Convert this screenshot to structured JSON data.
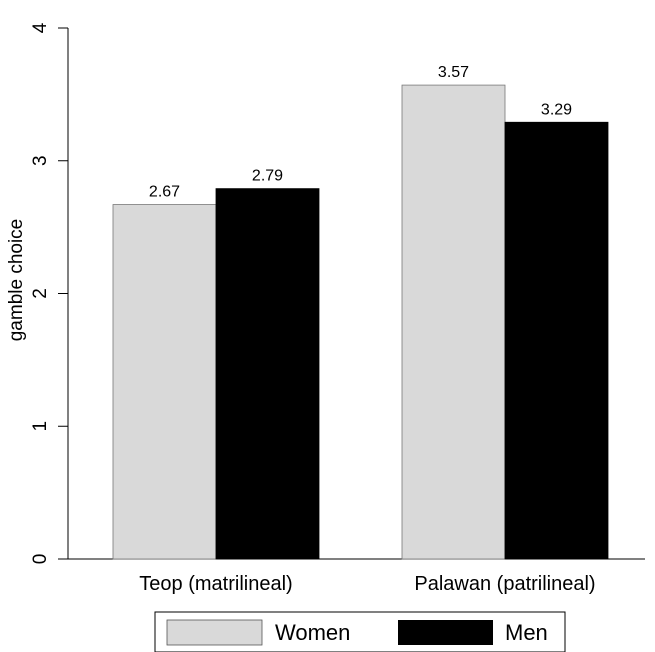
{
  "chart_data": {
    "type": "bar",
    "title": "",
    "xlabel": "",
    "ylabel": "gamble choice",
    "ylim": [
      0,
      4
    ],
    "yticks": [
      0,
      1,
      2,
      3,
      4
    ],
    "grid": false,
    "legend_position": "bottom",
    "categories": [
      "Teop (matrilineal)",
      "Palawan (patrilineal)"
    ],
    "series": [
      {
        "name": "Women",
        "color": "#d9d9d9",
        "values": [
          2.67,
          3.57
        ],
        "labels": [
          "2.67",
          "3.57"
        ]
      },
      {
        "name": "Men",
        "color": "#000000",
        "values": [
          2.79,
          3.29
        ],
        "labels": [
          "2.79",
          "3.29"
        ]
      }
    ]
  }
}
